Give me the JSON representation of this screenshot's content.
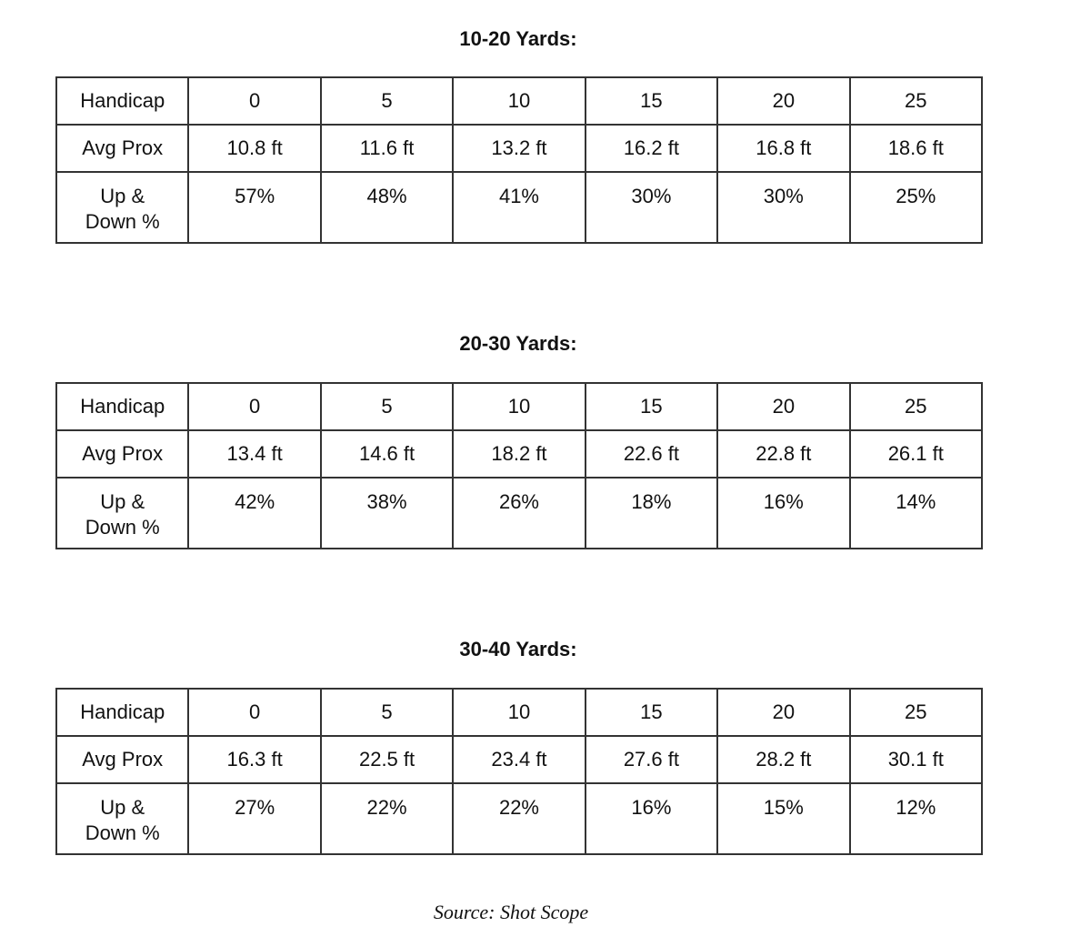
{
  "tables": [
    {
      "title": "10-20 Yards:",
      "header_label": "Handicap",
      "handicaps": [
        "0",
        "5",
        "10",
        "15",
        "20",
        "25"
      ],
      "prox_label": "Avg Prox",
      "prox": [
        "10.8 ft",
        "11.6 ft",
        "13.2 ft",
        "16.2 ft",
        "16.8 ft",
        "18.6 ft"
      ],
      "updown_label_1": "Up &",
      "updown_label_2": "Down %",
      "updown": [
        "57%",
        "48%",
        "41%",
        "30%",
        "30%",
        "25%"
      ]
    },
    {
      "title": "20-30 Yards:",
      "header_label": "Handicap",
      "handicaps": [
        "0",
        "5",
        "10",
        "15",
        "20",
        "25"
      ],
      "prox_label": "Avg Prox",
      "prox": [
        "13.4 ft",
        "14.6 ft",
        "18.2 ft",
        "22.6 ft",
        "22.8 ft",
        "26.1 ft"
      ],
      "updown_label_1": "Up &",
      "updown_label_2": "Down %",
      "updown": [
        "42%",
        "38%",
        "26%",
        "18%",
        "16%",
        "14%"
      ]
    },
    {
      "title": "30-40 Yards:",
      "header_label": "Handicap",
      "handicaps": [
        "0",
        "5",
        "10",
        "15",
        "20",
        "25"
      ],
      "prox_label": "Avg Prox",
      "prox": [
        "16.3 ft",
        "22.5 ft",
        "23.4 ft",
        "27.6 ft",
        "28.2 ft",
        "30.1 ft"
      ],
      "updown_label_1": "Up &",
      "updown_label_2": "Down %",
      "updown": [
        "27%",
        "22%",
        "22%",
        "16%",
        "15%",
        "12%"
      ]
    }
  ],
  "source": "Source: Shot Scope"
}
